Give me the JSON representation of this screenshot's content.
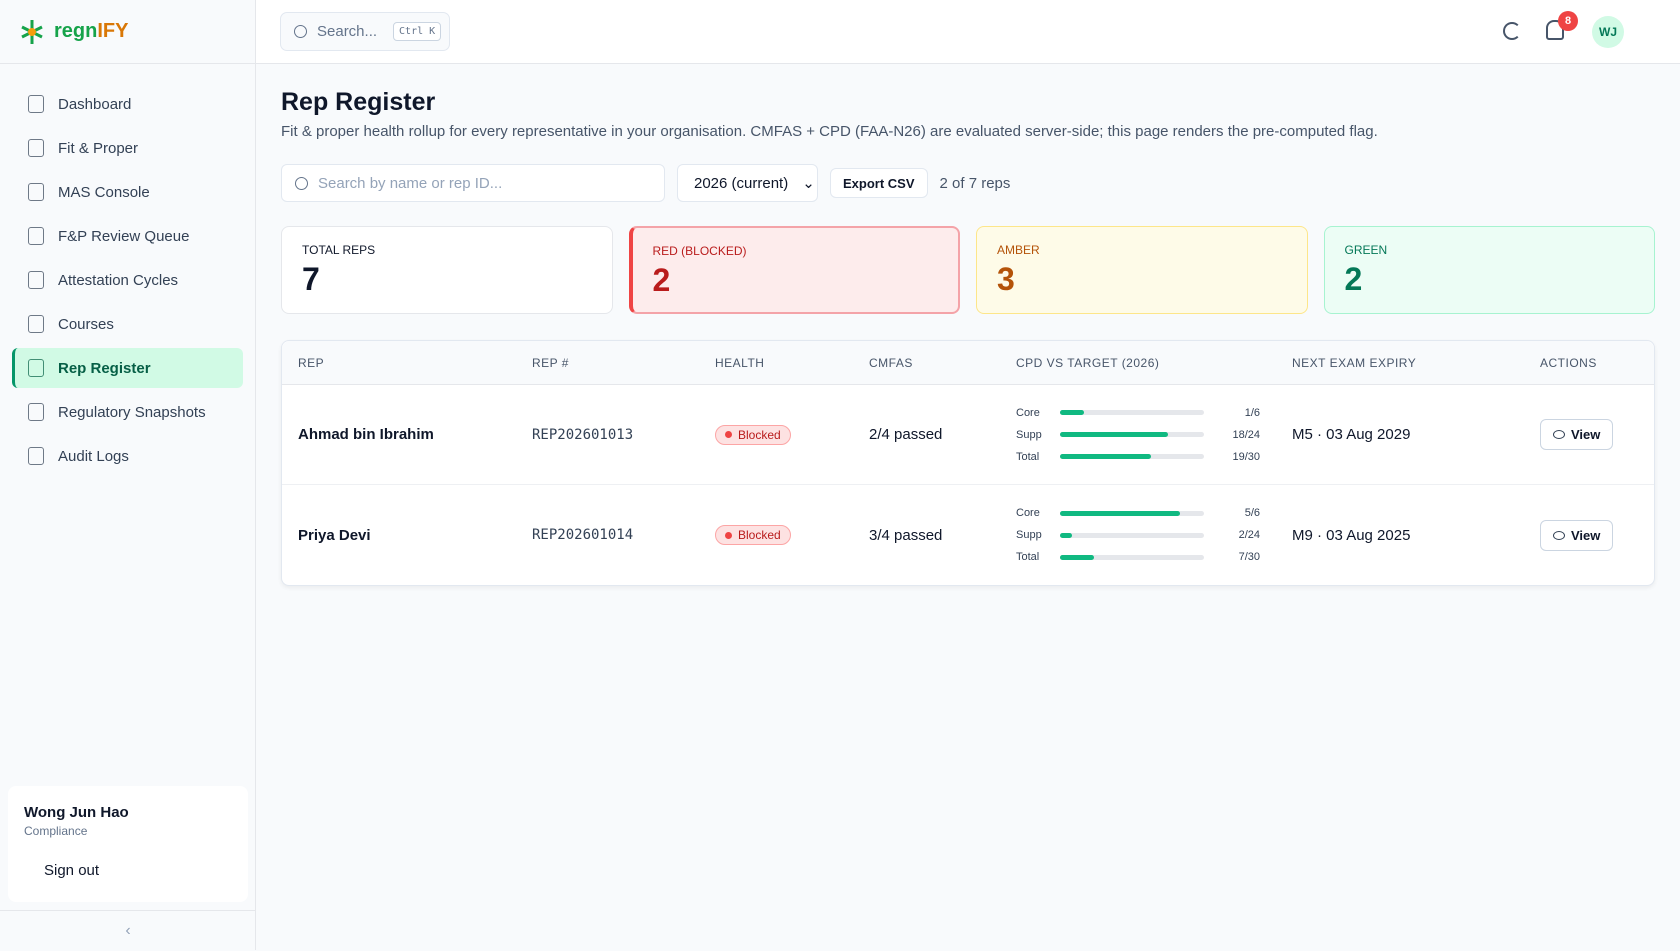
{
  "brand": {
    "prefix": "regn",
    "suffix": "IFY"
  },
  "header": {
    "search_placeholder": "Search...",
    "shortcut": "Ctrl K",
    "notifications": 8,
    "avatar": "WJ"
  },
  "nav": [
    {
      "label": "Dashboard"
    },
    {
      "label": "Fit & Proper"
    },
    {
      "label": "MAS Console"
    },
    {
      "label": "F&P Review Queue"
    },
    {
      "label": "Attestation Cycles"
    },
    {
      "label": "Courses"
    },
    {
      "label": "Rep Register",
      "active": true
    },
    {
      "label": "Regulatory Snapshots"
    },
    {
      "label": "Audit Logs"
    }
  ],
  "user": {
    "name": "Wong Jun Hao",
    "role": "Compliance",
    "sign_out": "Sign out"
  },
  "page": {
    "title": "Rep Register",
    "description": "Fit & proper health rollup for every representative in your organisation. CMFAS + CPD (FAA-N26) are evaluated server-side; this page renders the pre-computed flag."
  },
  "filters": {
    "search_placeholder": "Search by name or rep ID...",
    "year": "2026 (current)",
    "export": "Export CSV",
    "count": "2 of 7 reps"
  },
  "stats": [
    {
      "label": "TOTAL REPS",
      "value": 7,
      "tone": "neutral"
    },
    {
      "label": "RED (BLOCKED)",
      "value": 2,
      "tone": "red"
    },
    {
      "label": "AMBER",
      "value": 3,
      "tone": "amber"
    },
    {
      "label": "GREEN",
      "value": 2,
      "tone": "green"
    }
  ],
  "table": {
    "columns": [
      "REP",
      "REP #",
      "HEALTH",
      "CMFAS",
      "CPD VS TARGET (2026)",
      "NEXT EXAM EXPIRY",
      "ACTIONS"
    ],
    "rows": [
      {
        "name": "Ahmad bin Ibrahim",
        "rep_id": "REP202601013",
        "health": "Blocked",
        "cmfas": "2/4 passed",
        "cpd": [
          {
            "label": "Core",
            "done": 1,
            "target": 6,
            "value_label": "1/6"
          },
          {
            "label": "Supp",
            "done": 18,
            "target": 24,
            "value_label": "18/24"
          },
          {
            "label": "Total",
            "done": 19,
            "target": 30,
            "value_label": "19/30"
          }
        ],
        "expiry": "M5 · 03 Aug 2029",
        "action": "View"
      },
      {
        "name": "Priya Devi",
        "rep_id": "REP202601014",
        "health": "Blocked",
        "cmfas": "3/4 passed",
        "cpd": [
          {
            "label": "Core",
            "done": 5,
            "target": 6,
            "value_label": "5/6"
          },
          {
            "label": "Supp",
            "done": 2,
            "target": 24,
            "value_label": "2/24"
          },
          {
            "label": "Total",
            "done": 7,
            "target": 30,
            "value_label": "7/30"
          }
        ],
        "expiry": "M9 · 03 Aug 2025",
        "action": "View"
      }
    ]
  }
}
